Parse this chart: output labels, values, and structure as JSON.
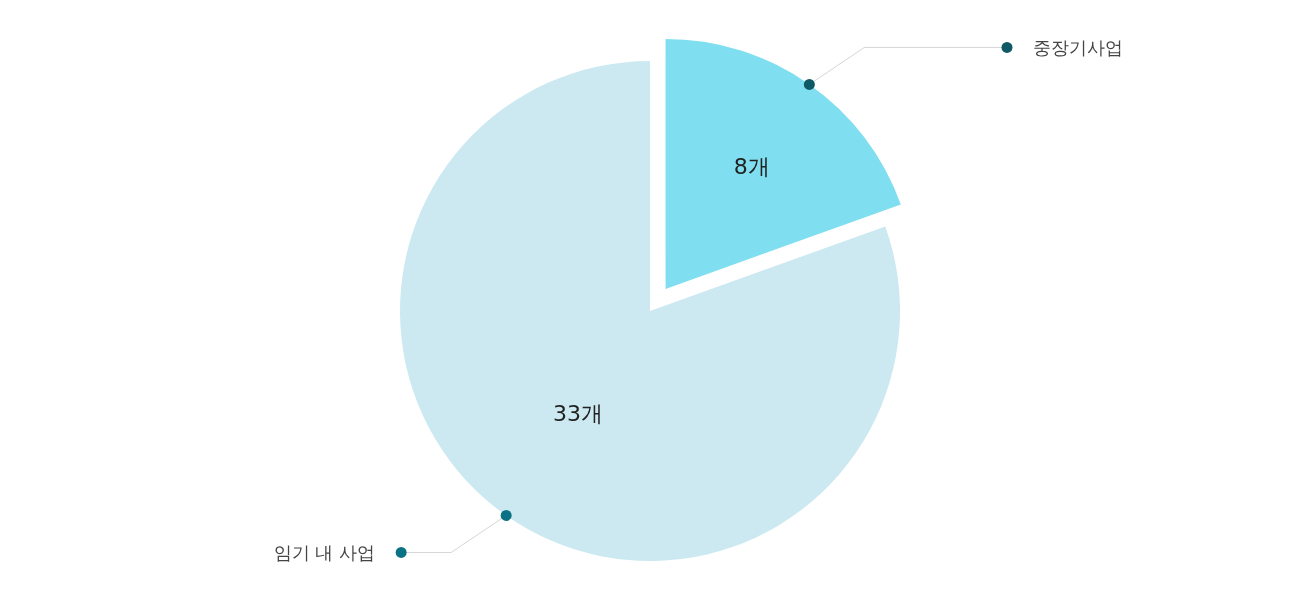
{
  "chart_data": {
    "type": "pie",
    "categories": [
      "중장기사업",
      "임기 내 사업"
    ],
    "values": [
      8,
      33
    ],
    "colors": [
      "#7fdeef",
      "#cce9f1"
    ],
    "value_labels": [
      "8개",
      "33개"
    ]
  }
}
